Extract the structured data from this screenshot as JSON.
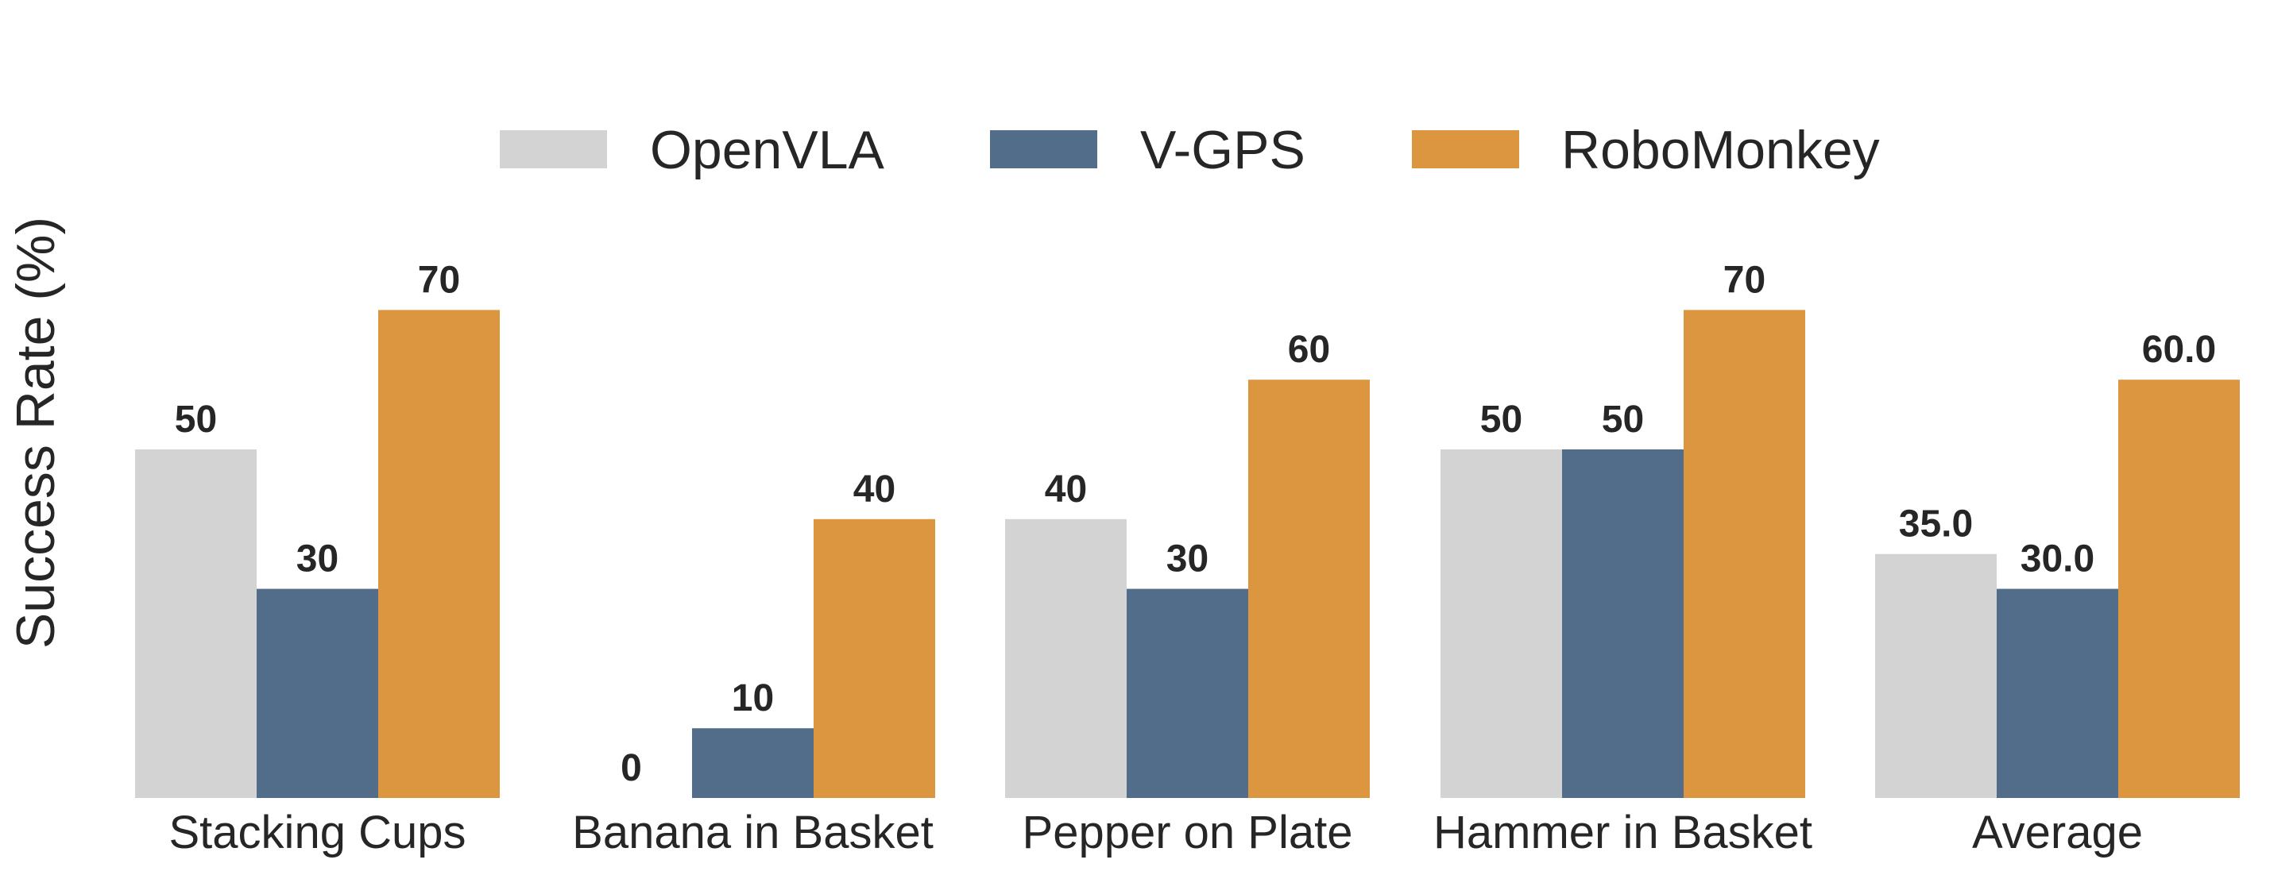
{
  "chart_data": {
    "type": "bar",
    "title": "",
    "xlabel": "",
    "ylabel": "Success Rate (%)",
    "ylim": [
      0,
      88
    ],
    "grid": false,
    "legend_position": "top",
    "categories": [
      "Stacking Cups",
      "Banana in Basket",
      "Pepper on Plate",
      "Hammer in Basket",
      "Average"
    ],
    "series": [
      {
        "name": "OpenVLA",
        "color": "#d3d3d3",
        "values": [
          50,
          0,
          40,
          50,
          35.0
        ],
        "value_labels": [
          "50",
          "0",
          "40",
          "50",
          "35.0"
        ]
      },
      {
        "name": "V-GPS",
        "color": "#516d89",
        "values": [
          30,
          10,
          30,
          50,
          30.0
        ],
        "value_labels": [
          "30",
          "10",
          "30",
          "50",
          "30.0"
        ]
      },
      {
        "name": "RoboMonkey",
        "color": "#dc9640",
        "values": [
          70,
          40,
          60,
          70,
          60.0
        ],
        "value_labels": [
          "70",
          "40",
          "60",
          "70",
          "60.0"
        ]
      }
    ]
  }
}
